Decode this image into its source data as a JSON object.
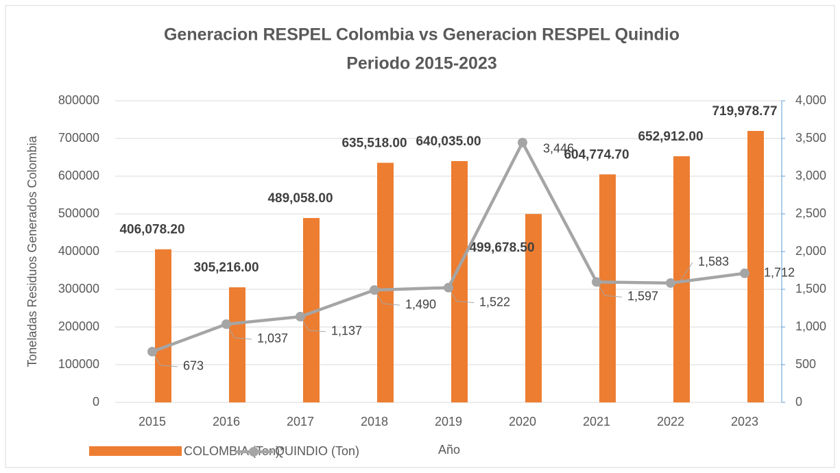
{
  "chart_data": {
    "type": "bar-line",
    "title": "Generacion RESPEL Colombia vs Generacion RESPEL Quindio",
    "subtitle": "Periodo 2015-2023",
    "xlabel": "Año",
    "ylabel": "Toneladas Residuos Generados Colombia",
    "categories": [
      "2015",
      "2016",
      "2017",
      "2018",
      "2019",
      "2020",
      "2021",
      "2022",
      "2023"
    ],
    "series": [
      {
        "name": "COLOMBIA (Ton)*",
        "color": "#ed7d31",
        "kind": "bar",
        "values": [
          406078.2,
          305216,
          489058,
          635518,
          640035,
          499678.5,
          604774.7,
          652912,
          719978.77
        ],
        "value_labels": [
          "406,078.20",
          "305,216.00",
          "489,058.00",
          "635,518.00",
          "640,035.00",
          "499,678.50",
          "604,774.70",
          "652,912.00",
          "719,978.77"
        ]
      },
      {
        "name": "QUINDIO (Ton)",
        "color": "#a5a5a5",
        "kind": "line",
        "axis": "y2",
        "values": [
          673,
          1037,
          1137,
          1490,
          1522,
          3446,
          1597,
          1583,
          1712
        ],
        "value_labels": [
          "673",
          "1,037",
          "1,137",
          "1,490",
          "1,522",
          "3,446",
          "1,597",
          "1,583",
          "1,712"
        ]
      }
    ],
    "ylim": [
      0,
      800000
    ],
    "yticks": [
      0,
      100000,
      200000,
      300000,
      400000,
      500000,
      600000,
      700000,
      800000
    ],
    "y2lim": [
      0,
      4000
    ],
    "y2ticks": [
      0,
      500,
      {
        "value": 1000,
        "label": "1,000"
      },
      {
        "value": 1500,
        "label": "1,500"
      },
      {
        "value": 2000,
        "label": "2,000"
      },
      {
        "value": 2500,
        "label": "2,500"
      },
      {
        "value": 3000,
        "label": "3,000"
      },
      {
        "value": 3500,
        "label": "3,500"
      },
      {
        "value": 4000,
        "label": "4,000"
      }
    ],
    "legend": "bottom-left"
  }
}
